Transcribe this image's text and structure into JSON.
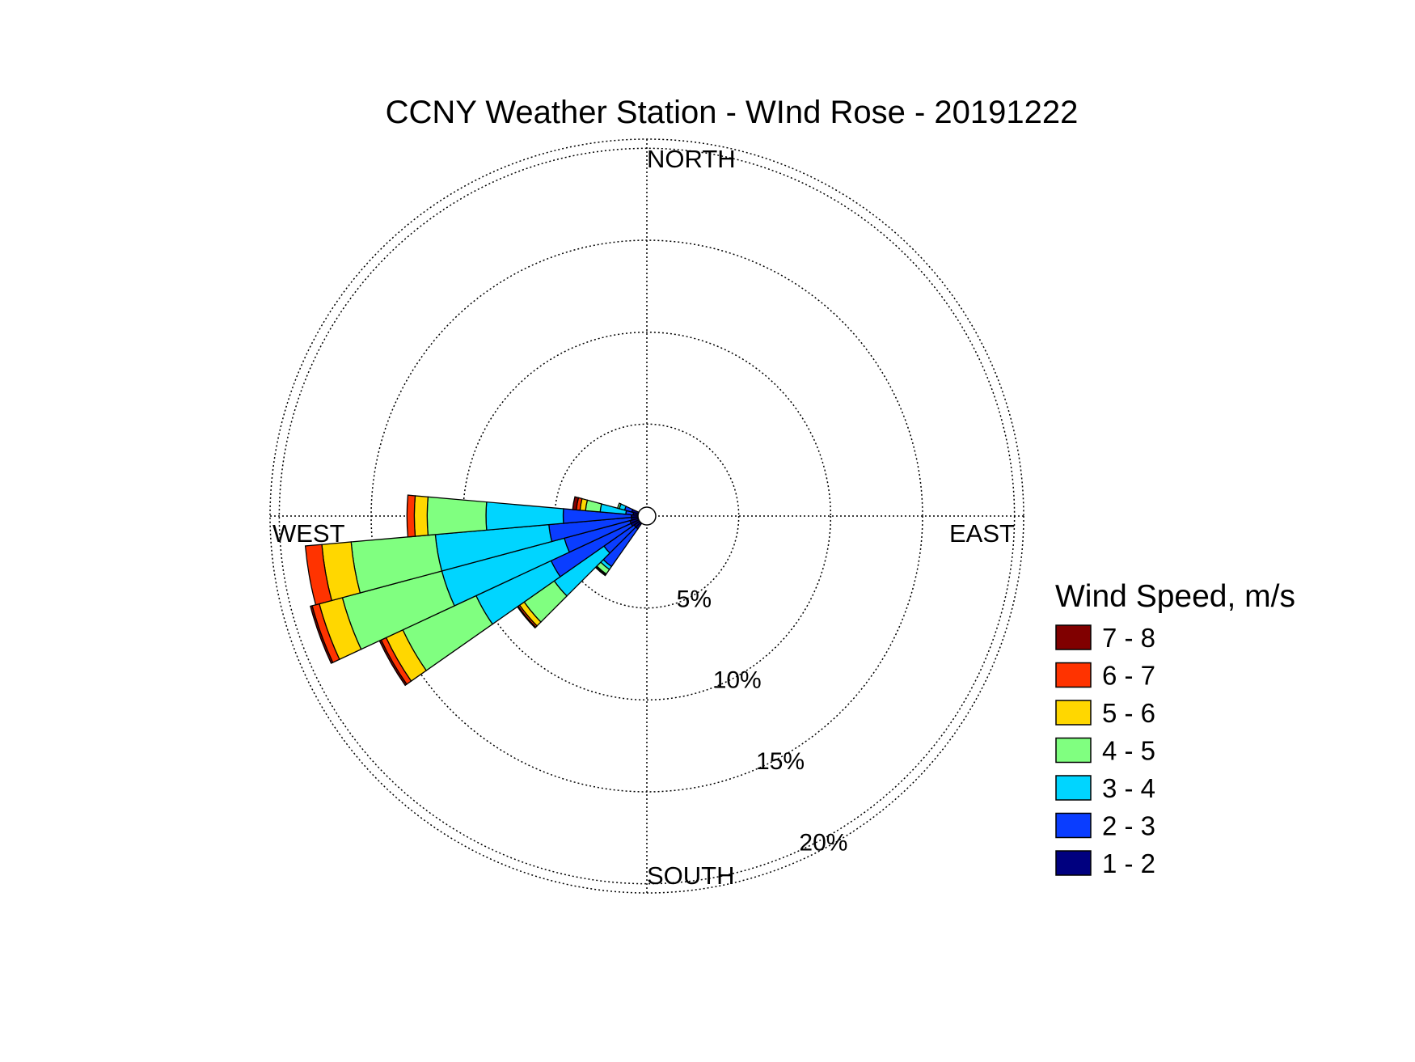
{
  "chart_data": {
    "type": "windrose",
    "title": "CCNY Weather Station - WInd Rose - 20191222",
    "directions": {
      "north": "NORTH",
      "south": "SOUTH",
      "east": "EAST",
      "west": "WEST"
    },
    "rings": [
      {
        "value": 5,
        "label": "5%"
      },
      {
        "value": 10,
        "label": "10%"
      },
      {
        "value": 15,
        "label": "15%"
      },
      {
        "value": 20,
        "label": "20%"
      }
    ],
    "r_max": 20.5,
    "grid": true,
    "legend": {
      "title": "Wind Speed, m/s",
      "placement": "right",
      "bins": [
        {
          "label": "7 - 8",
          "color": "#800000"
        },
        {
          "label": "6 - 7",
          "color": "#ff3300"
        },
        {
          "label": "5 - 6",
          "color": "#ffd700"
        },
        {
          "label": "4 - 5",
          "color": "#80ff80"
        },
        {
          "label": "3 - 4",
          "color": "#00d5ff"
        },
        {
          "label": "2 - 3",
          "color": "#0a3dff"
        },
        {
          "label": "1 - 2",
          "color": "#00007f"
        }
      ]
    },
    "sector_width_deg": 10,
    "series_order_inner_to_outer": [
      "1 - 2",
      "2 - 3",
      "3 - 4",
      "4 - 5",
      "5 - 6",
      "6 - 7",
      "7 - 8"
    ],
    "sectors": [
      {
        "direction_deg": 220,
        "values": [
          0.5,
          2.5,
          0.2,
          0.3,
          0.05,
          0.05,
          0
        ]
      },
      {
        "direction_deg": 230,
        "values": [
          0.5,
          2.0,
          3.3,
          2.0,
          0.3,
          0.1,
          0.05
        ]
      },
      {
        "direction_deg": 240,
        "values": [
          0.6,
          4.8,
          4.5,
          4.4,
          1.0,
          0.3,
          0.1
        ]
      },
      {
        "direction_deg": 250,
        "values": [
          0.6,
          3.7,
          6.9,
          5.6,
          1.3,
          0.4,
          0.1
        ]
      },
      {
        "direction_deg": 260,
        "values": [
          0.5,
          4.5,
          6.2,
          4.6,
          1.6,
          0.9,
          0
        ]
      },
      {
        "direction_deg": 270,
        "values": [
          0.5,
          3.7,
          4.2,
          3.2,
          0.7,
          0.4,
          0
        ]
      },
      {
        "direction_deg": 280,
        "values": [
          0.4,
          0.4,
          1.4,
          0.8,
          0.3,
          0.2,
          0.2
        ]
      },
      {
        "direction_deg": 290,
        "values": [
          0.5,
          0.4,
          0.3,
          0.1,
          0,
          0,
          0
        ]
      }
    ]
  }
}
